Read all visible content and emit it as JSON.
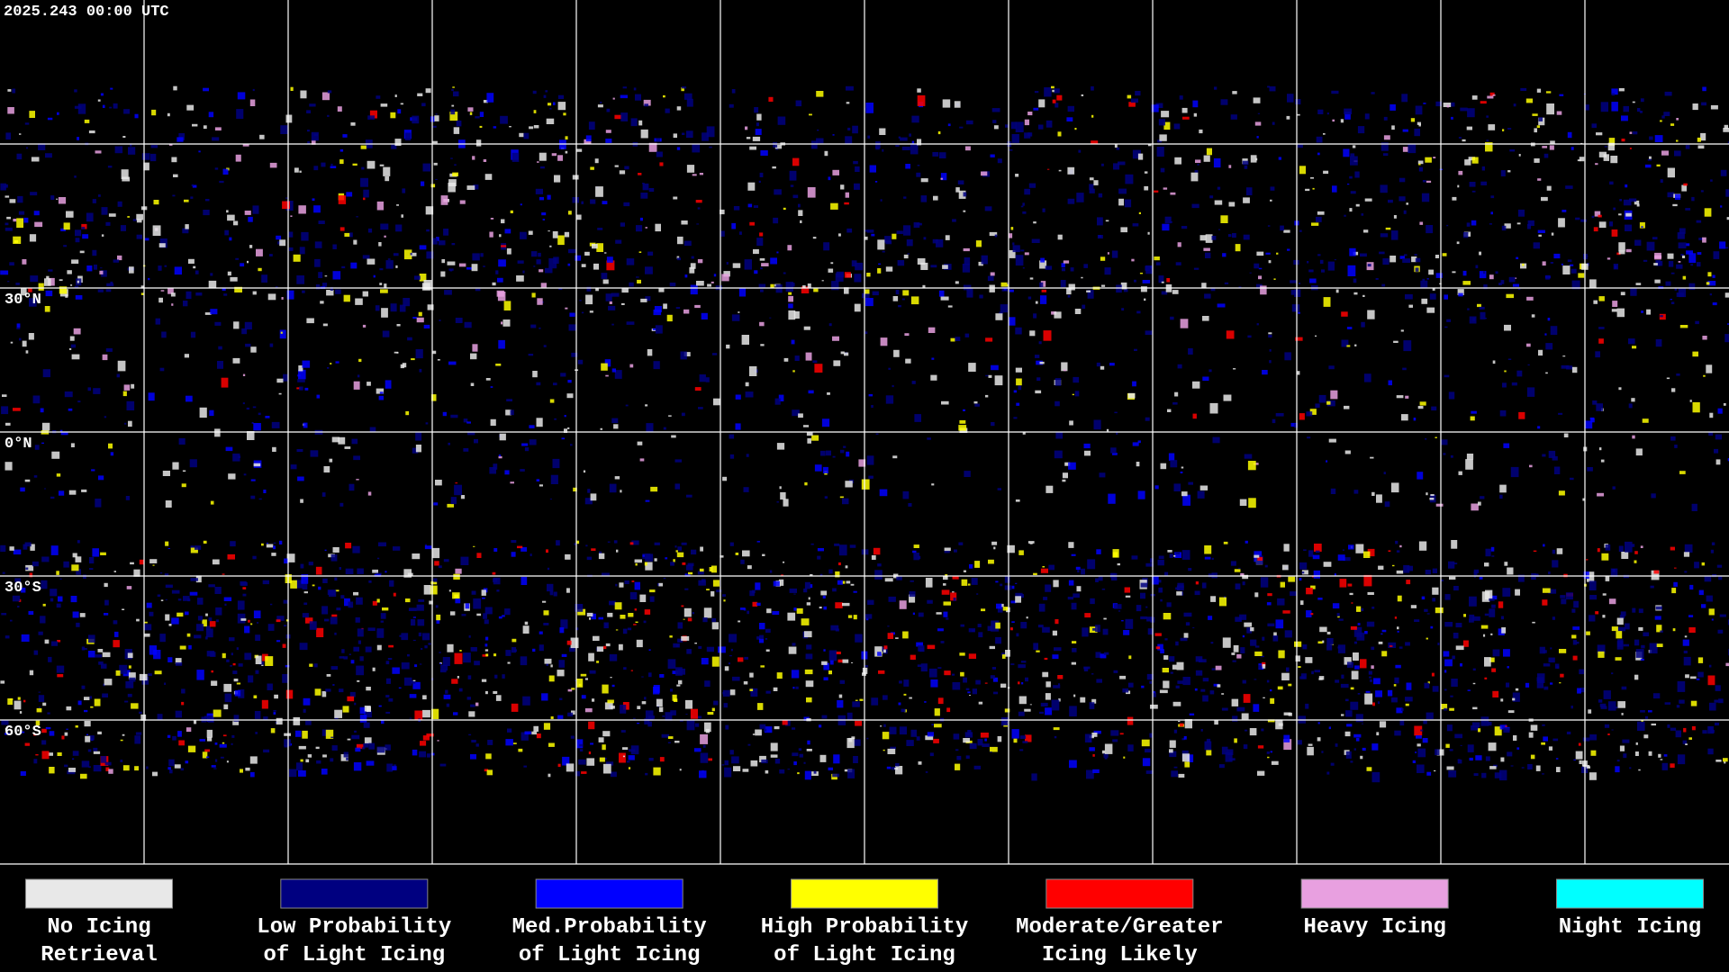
{
  "header": {
    "timestamp": "2025.243 00:00 UTC"
  },
  "map": {
    "latitude_labels": [
      "30°N",
      "0°N",
      "30°S",
      "60°S"
    ]
  },
  "legend": {
    "items": [
      {
        "lines": [
          "No Icing",
          "Retrieval"
        ],
        "color": "#e8e8e8"
      },
      {
        "lines": [
          "Low Probability",
          "of Light Icing"
        ],
        "color": "#000080"
      },
      {
        "lines": [
          "Med.Probability",
          "of Light Icing"
        ],
        "color": "#0000ff"
      },
      {
        "lines": [
          "High Probability",
          "of Light Icing"
        ],
        "color": "#ffff00"
      },
      {
        "lines": [
          "Moderate/Greater",
          "Icing Likely"
        ],
        "color": "#ff0000"
      },
      {
        "lines": [
          "Heavy Icing"
        ],
        "color": "#e8a0e0"
      },
      {
        "lines": [
          "Night Icing"
        ],
        "color": "#00ffff"
      }
    ]
  }
}
